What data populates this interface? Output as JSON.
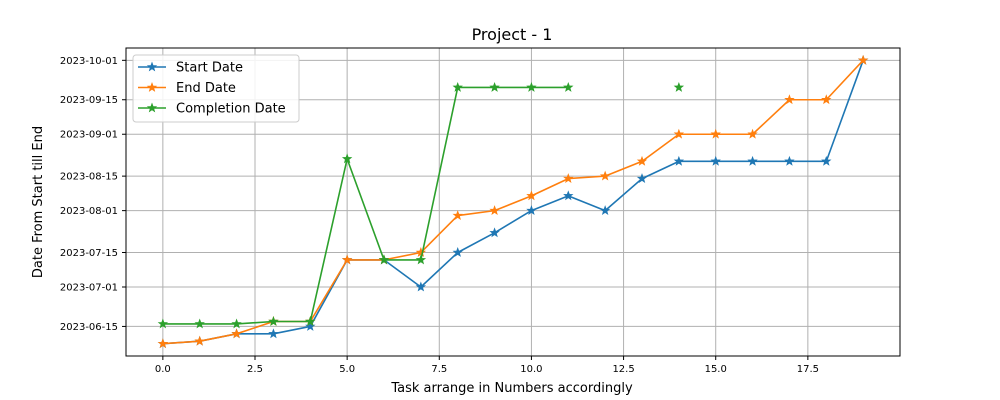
{
  "chart_data": {
    "type": "line",
    "title": "Project - 1",
    "xlabel": "Task arrange in Numbers accordingly",
    "ylabel": "Date From Start till End",
    "xlim": [
      -1,
      20
    ],
    "ylim": [
      "2023-06-03",
      "2023-10-06"
    ],
    "x_ticks": [
      0,
      2.5,
      5,
      7.5,
      10,
      12.5,
      15,
      17.5
    ],
    "x_tick_labels": [
      "0.0",
      "2.5",
      "5.0",
      "7.5",
      "10.0",
      "12.5",
      "15.0",
      "17.5"
    ],
    "y_ticks": [
      "2023-06-15",
      "2023-07-01",
      "2023-07-15",
      "2023-08-01",
      "2023-08-15",
      "2023-09-01",
      "2023-09-15",
      "2023-10-01"
    ],
    "grid": true,
    "legend_position": "top-left",
    "series": [
      {
        "name": "Start Date",
        "color": "#1f77b4",
        "marker": "star",
        "x": [
          0,
          1,
          2,
          3,
          4,
          5,
          6,
          7,
          8,
          9,
          10,
          11,
          12,
          13,
          14,
          15,
          16,
          17,
          18,
          19
        ],
        "y": [
          "2023-06-08",
          "2023-06-09",
          "2023-06-12",
          "2023-06-12",
          "2023-06-15",
          "2023-07-12",
          "2023-07-12",
          "2023-07-01",
          "2023-07-15",
          "2023-07-23",
          "2023-08-01",
          "2023-08-07",
          "2023-08-01",
          "2023-08-14",
          "2023-08-21",
          "2023-08-21",
          "2023-08-21",
          "2023-08-21",
          "2023-08-21",
          "2023-10-01"
        ]
      },
      {
        "name": "End Date",
        "color": "#ff7f0e",
        "marker": "star",
        "x": [
          0,
          1,
          2,
          3,
          4,
          5,
          6,
          7,
          8,
          9,
          10,
          11,
          12,
          13,
          14,
          15,
          16,
          17,
          18,
          19
        ],
        "y": [
          "2023-06-08",
          "2023-06-09",
          "2023-06-12",
          "2023-06-17",
          "2023-06-17",
          "2023-07-12",
          "2023-07-12",
          "2023-07-15",
          "2023-07-30",
          "2023-08-01",
          "2023-08-07",
          "2023-08-14",
          "2023-08-15",
          "2023-08-21",
          "2023-09-01",
          "2023-09-01",
          "2023-09-01",
          "2023-09-15",
          "2023-09-15",
          "2023-10-01"
        ]
      },
      {
        "name": "Completion Date",
        "color": "#2ca02c",
        "marker": "star",
        "x": [
          0,
          1,
          2,
          3,
          4,
          5,
          6,
          7,
          8,
          9,
          10,
          11,
          null,
          null,
          14
        ],
        "y": [
          "2023-06-16",
          "2023-06-16",
          "2023-06-16",
          "2023-06-17",
          "2023-06-17",
          "2023-08-22",
          "2023-07-12",
          "2023-07-12",
          "2023-09-20",
          "2023-09-20",
          "2023-09-20",
          "2023-09-20",
          null,
          null,
          "2023-09-20"
        ]
      }
    ]
  }
}
